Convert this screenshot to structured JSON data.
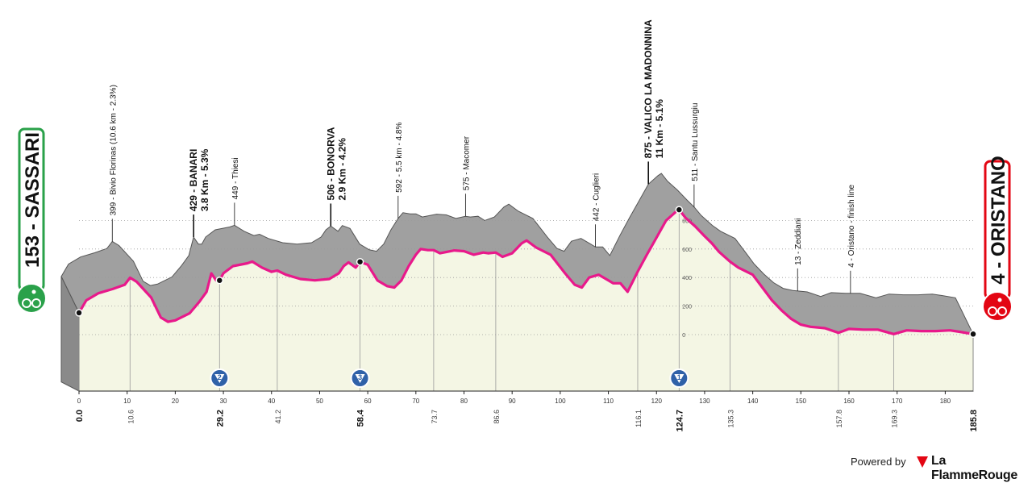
{
  "chart_data": {
    "type": "area",
    "colors": {
      "profile": "#a0a0a0",
      "route": "#e8198b",
      "ground": "#f4f6e4",
      "start_badge": "#2aa14a",
      "finish_badge": "#e30613",
      "gpm": "#2f61a8"
    },
    "start": {
      "name": "153 - SASSARI",
      "km": 0.0
    },
    "finish": {
      "name": "4 - ORISTANO",
      "km": 185.8
    },
    "km_ticks": [
      0,
      10,
      20,
      30,
      40,
      50,
      60,
      70,
      80,
      90,
      100,
      110,
      120,
      130,
      140,
      150,
      160,
      170,
      180
    ],
    "altitude_ticks": [
      0,
      200,
      400,
      600,
      800
    ],
    "xlim": [
      0,
      185.8
    ],
    "ylim": [
      0,
      950
    ],
    "profile": [
      [
        0,
        153
      ],
      [
        1.5,
        240
      ],
      [
        4,
        290
      ],
      [
        7,
        320
      ],
      [
        9.5,
        350
      ],
      [
        10.6,
        399
      ],
      [
        12,
        370
      ],
      [
        15,
        260
      ],
      [
        17,
        120
      ],
      [
        18.5,
        90
      ],
      [
        20,
        100
      ],
      [
        23,
        150
      ],
      [
        25,
        230
      ],
      [
        26.5,
        300
      ],
      [
        27.5,
        429
      ],
      [
        28.5,
        380
      ],
      [
        29.2,
        380
      ],
      [
        30,
        430
      ],
      [
        32,
        480
      ],
      [
        35,
        500
      ],
      [
        36,
        512
      ],
      [
        38,
        470
      ],
      [
        40,
        440
      ],
      [
        41.2,
        449
      ],
      [
        43,
        420
      ],
      [
        46,
        390
      ],
      [
        49,
        380
      ],
      [
        52,
        390
      ],
      [
        54,
        430
      ],
      [
        55,
        480
      ],
      [
        56,
        506
      ],
      [
        57.5,
        470
      ],
      [
        58.4,
        510
      ],
      [
        60,
        490
      ],
      [
        62,
        380
      ],
      [
        64,
        340
      ],
      [
        65.5,
        330
      ],
      [
        67,
        380
      ],
      [
        68.5,
        480
      ],
      [
        70,
        560
      ],
      [
        71,
        600
      ],
      [
        72.5,
        592
      ],
      [
        73.7,
        592
      ],
      [
        75,
        570
      ],
      [
        78,
        590
      ],
      [
        80,
        585
      ],
      [
        82,
        560
      ],
      [
        84,
        575
      ],
      [
        85,
        570
      ],
      [
        86.6,
        575
      ],
      [
        88,
        545
      ],
      [
        90,
        570
      ],
      [
        92,
        640
      ],
      [
        93,
        660
      ],
      [
        95,
        610
      ],
      [
        98,
        560
      ],
      [
        101,
        430
      ],
      [
        103,
        350
      ],
      [
        104.5,
        330
      ],
      [
        106,
        400
      ],
      [
        108,
        420
      ],
      [
        110,
        380
      ],
      [
        111,
        360
      ],
      [
        112.5,
        360
      ],
      [
        114,
        300
      ],
      [
        116.1,
        442
      ],
      [
        118,
        560
      ],
      [
        120,
        680
      ],
      [
        122,
        800
      ],
      [
        124,
        860
      ],
      [
        124.7,
        875
      ],
      [
        126,
        820
      ],
      [
        128,
        760
      ],
      [
        130,
        690
      ],
      [
        131.5,
        640
      ],
      [
        133,
        580
      ],
      [
        135.3,
        511
      ],
      [
        137,
        470
      ],
      [
        140,
        420
      ],
      [
        142,
        330
      ],
      [
        144,
        240
      ],
      [
        146,
        170
      ],
      [
        148,
        110
      ],
      [
        150,
        70
      ],
      [
        152,
        55
      ],
      [
        155,
        45
      ],
      [
        157.8,
        13
      ],
      [
        160,
        40
      ],
      [
        163,
        35
      ],
      [
        166,
        35
      ],
      [
        169.3,
        4
      ],
      [
        172,
        30
      ],
      [
        175,
        25
      ],
      [
        178,
        25
      ],
      [
        181,
        30
      ],
      [
        183,
        20
      ],
      [
        185.8,
        4
      ]
    ],
    "elevation_labels": [
      {
        "km": 10.6,
        "text": "399 - Bivio Florinas (10.6 km - 2.3%)",
        "bold": false
      },
      {
        "km": 27.5,
        "text": "429 - BANARI",
        "text2": "3.8 Km - 5.3%",
        "bold": true
      },
      {
        "km": 36,
        "text": "449 - Thiesi",
        "bold": false
      },
      {
        "km": 56,
        "text": "506 - BONORVA",
        "text2": "2.9 Km - 4.2%",
        "bold": true
      },
      {
        "km": 70,
        "text": "592 - 5.5 km - 4.8%",
        "bold": false
      },
      {
        "km": 84,
        "text": "575 - Macomer",
        "bold": false
      },
      {
        "km": 111,
        "text": "442 - Cuglieri",
        "bold": false
      },
      {
        "km": 122,
        "text": "875 - VALICO LA MADONNINA",
        "text2": "11 Km - 5.1%",
        "bold": true
      },
      {
        "km": 131.5,
        "text": "511 - Santu Lussurgiu",
        "bold": false
      },
      {
        "km": 153,
        "text": "13 - Zeddiani",
        "bold": false
      },
      {
        "km": 164,
        "text": "4 - Oristano - finish line",
        "bold": false
      }
    ],
    "distance_labels": [
      {
        "km": 0.0,
        "text": "0.0",
        "major": true
      },
      {
        "km": 10.6,
        "text": "10.6",
        "major": false
      },
      {
        "km": 29.2,
        "text": "29.2",
        "major": true
      },
      {
        "km": 41.2,
        "text": "41.2",
        "major": false
      },
      {
        "km": 58.4,
        "text": "58.4",
        "major": true
      },
      {
        "km": 73.7,
        "text": "73.7",
        "major": false
      },
      {
        "km": 86.6,
        "text": "86.6",
        "major": false
      },
      {
        "km": 116.1,
        "text": "116.1",
        "major": false
      },
      {
        "km": 124.7,
        "text": "124.7",
        "major": true
      },
      {
        "km": 135.3,
        "text": "135.3",
        "major": false
      },
      {
        "km": 157.8,
        "text": "157.8",
        "major": false
      },
      {
        "km": 169.3,
        "text": "169.3",
        "major": false
      },
      {
        "km": 185.8,
        "text": "185.8",
        "major": true
      }
    ],
    "gpm": [
      {
        "km": 29.2,
        "category": "2"
      },
      {
        "km": 58.4,
        "category": "3"
      },
      {
        "km": 124.7,
        "category": "1"
      }
    ],
    "markers": [
      0.0,
      29.2,
      58.4,
      124.7,
      185.8
    ]
  },
  "footer": {
    "powered": "Powered by",
    "brand": "La FlammeRouge"
  }
}
